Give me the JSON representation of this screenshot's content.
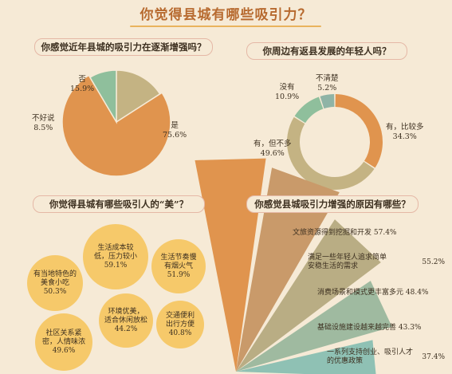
{
  "title": "你觉得县城有哪些吸引力？",
  "q1": {
    "question": "你感觉近年县城的吸引力在逐渐增强吗？",
    "chart_data": {
      "type": "pie",
      "slices": [
        {
          "name": "是",
          "pct_label": "75.6%",
          "value": 75.6,
          "color": "#e0944e"
        },
        {
          "name": "不好说",
          "pct_label": "8.5%",
          "value": 8.5,
          "color": "#8fbf9c"
        },
        {
          "name": "否",
          "pct_label": "15.9%",
          "value": 15.9,
          "color": "#c4b383"
        }
      ]
    }
  },
  "q2": {
    "question": "你周边有返县发展的年轻人吗？",
    "chart_data": {
      "type": "pie",
      "donut": true,
      "slices": [
        {
          "name": "有，比较多",
          "pct_label": "34.3%",
          "value": 34.3,
          "color": "#e0944e"
        },
        {
          "name": "有，但不多",
          "pct_label": "49.6%",
          "value": 49.6,
          "color": "#c4b383"
        },
        {
          "name": "没有",
          "pct_label": "10.9%",
          "value": 10.9,
          "color": "#8fbf9c"
        },
        {
          "name": "不清楚",
          "pct_label": "5.2%",
          "value": 5.2,
          "color": "#8fb4a6"
        }
      ]
    }
  },
  "q3": {
    "question": "你觉得县城有哪些吸引人的“美”？",
    "bubbles": [
      {
        "lines": [
          "生活成本较",
          "低，压力较小"
        ],
        "pct": "59.1%"
      },
      {
        "lines": [
          "生活节奏慢",
          "有烟火气"
        ],
        "pct": "51.9%"
      },
      {
        "lines": [
          "有当地特色的",
          "美食小吃"
        ],
        "pct": "50.3%"
      },
      {
        "lines": [
          "环境优美，",
          "适合休闲放松"
        ],
        "pct": "44.2%"
      },
      {
        "lines": [
          "交通便利",
          "出行方便"
        ],
        "pct": "40.8%"
      },
      {
        "lines": [
          "社区关系紧",
          "密，人情味浓"
        ],
        "pct": "49.6%"
      }
    ]
  },
  "q4": {
    "question": "你感觉县城吸引力增强的原因有哪些？",
    "chart_data": {
      "type": "bar",
      "orientation": "horizontal",
      "series": [
        {
          "label": "文旅资源得到挖掘和开发",
          "pct": "57.4%",
          "value": 57.4,
          "color": "#e0944e"
        },
        {
          "label": "满足一些年轻人追求简单安稳生活的需求",
          "label_lines": [
            "满足一些年轻人追求简单",
            "安稳生活的需求"
          ],
          "pct": "55.2%",
          "value": 55.2,
          "color": "#c99a6a"
        },
        {
          "label": "消费场景和模式更丰富多元",
          "pct": "48.4%",
          "value": 48.4,
          "color": "#b9ad84"
        },
        {
          "label": "基础设施建设越来越完善",
          "pct": "43.3%",
          "value": 43.3,
          "color": "#9fbaa0"
        },
        {
          "label": "一系列支持创业、吸引人才的优惠政策",
          "label_lines": [
            "一系列支持创业、吸引人才",
            "的优惠政策"
          ],
          "pct": "37.4%",
          "value": 37.4,
          "color": "#8fc1b4"
        }
      ]
    }
  }
}
